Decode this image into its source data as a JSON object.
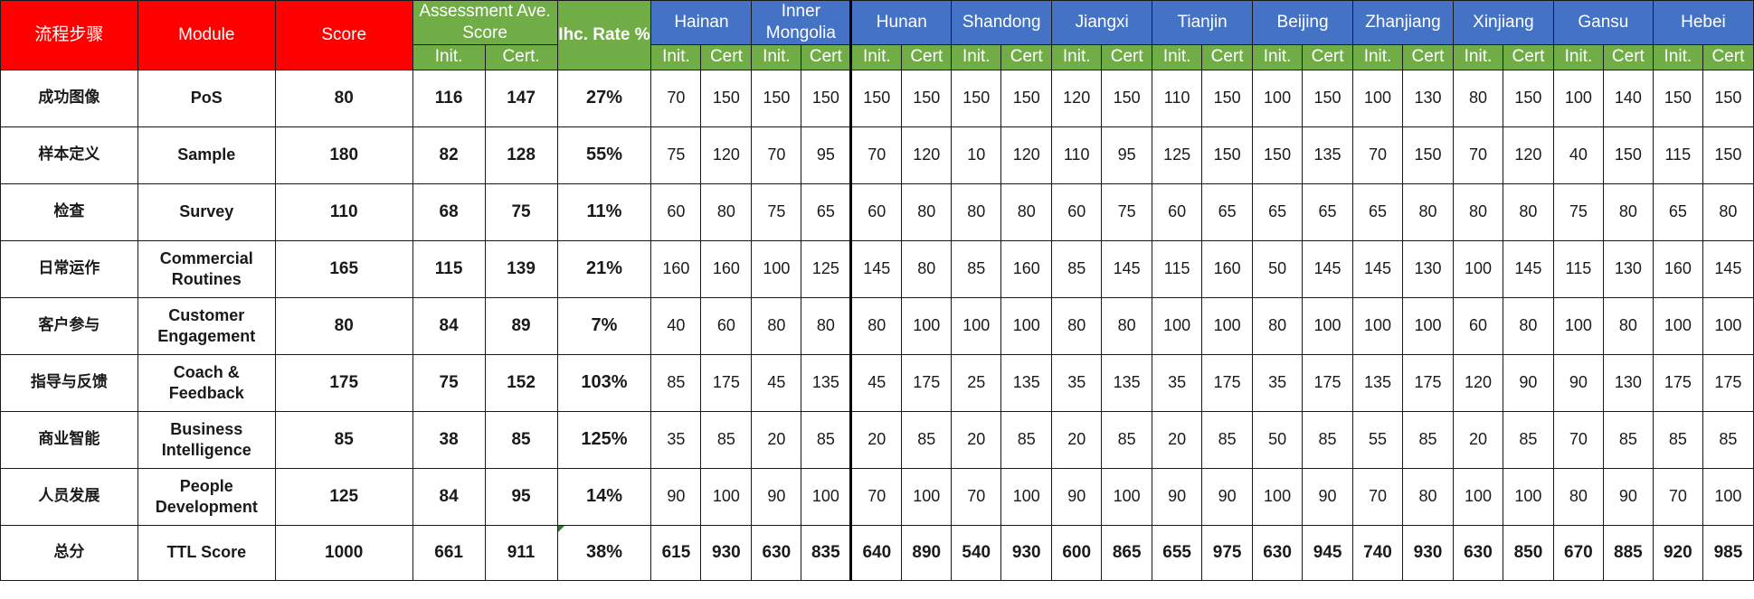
{
  "headers": {
    "step": "流程步骤",
    "module": "Module",
    "score": "Score",
    "assessment": "Assessment Ave. Score",
    "rate": "Ihc. Rate %",
    "init": "Init.",
    "cert": "Cert."
  },
  "provinces": [
    {
      "name": "Hainan",
      "init": "Init.",
      "cert": "Cert"
    },
    {
      "name": "Inner Mongolia",
      "init": "Init.",
      "cert": "Cert"
    },
    {
      "name": "Hunan",
      "init": "Init.",
      "cert": "Cert"
    },
    {
      "name": "Shandong",
      "init": "Init.",
      "cert": "Cert"
    },
    {
      "name": "Jiangxi",
      "init": "Init.",
      "cert": "Cert"
    },
    {
      "name": "Tianjin",
      "init": "Init.",
      "cert": "Cert"
    },
    {
      "name": "Beijing",
      "init": "Init.",
      "cert": "Cert"
    },
    {
      "name": "Zhanjiang",
      "init": "Init.",
      "cert": "Cert"
    },
    {
      "name": "Xinjiang",
      "init": "Init.",
      "cert": "Cert"
    },
    {
      "name": "Gansu",
      "init": "Init.",
      "cert": "Cert"
    },
    {
      "name": "Hebei",
      "init": "Init.",
      "cert": "Cert"
    }
  ],
  "rows": [
    {
      "step": "成功图像",
      "module": "PoS",
      "score": "80",
      "ave_init": "116",
      "ave_cert": "147",
      "rate": "27%",
      "values": [
        "70",
        "150",
        "150",
        "150",
        "150",
        "150",
        "150",
        "150",
        "120",
        "150",
        "110",
        "150",
        "100",
        "150",
        "100",
        "130",
        "80",
        "150",
        "100",
        "140",
        "150",
        "150"
      ]
    },
    {
      "step": "样本定义",
      "module": "Sample",
      "score": "180",
      "ave_init": "82",
      "ave_cert": "128",
      "rate": "55%",
      "values": [
        "75",
        "120",
        "70",
        "95",
        "70",
        "120",
        "10",
        "120",
        "110",
        "95",
        "125",
        "150",
        "150",
        "135",
        "70",
        "150",
        "70",
        "120",
        "40",
        "150",
        "115",
        "150"
      ]
    },
    {
      "step": "检查",
      "module": "Survey",
      "score": "110",
      "ave_init": "68",
      "ave_cert": "75",
      "rate": "11%",
      "values": [
        "60",
        "80",
        "75",
        "65",
        "60",
        "80",
        "80",
        "80",
        "60",
        "75",
        "60",
        "65",
        "65",
        "65",
        "65",
        "80",
        "80",
        "80",
        "75",
        "80",
        "65",
        "80"
      ]
    },
    {
      "step": "日常运作",
      "module": "Commercial Routines",
      "score": "165",
      "ave_init": "115",
      "ave_cert": "139",
      "rate": "21%",
      "values": [
        "160",
        "160",
        "100",
        "125",
        "145",
        "80",
        "85",
        "160",
        "85",
        "145",
        "115",
        "160",
        "50",
        "145",
        "145",
        "130",
        "100",
        "145",
        "115",
        "130",
        "160",
        "145"
      ]
    },
    {
      "step": "客户参与",
      "module": "Customer Engagement",
      "score": "80",
      "ave_init": "84",
      "ave_cert": "89",
      "rate": "7%",
      "values": [
        "40",
        "60",
        "80",
        "80",
        "80",
        "100",
        "100",
        "100",
        "80",
        "80",
        "100",
        "100",
        "80",
        "100",
        "100",
        "100",
        "60",
        "80",
        "100",
        "80",
        "100",
        "100"
      ]
    },
    {
      "step": "指导与反馈",
      "module": "Coach & Feedback",
      "score": "175",
      "ave_init": "75",
      "ave_cert": "152",
      "rate": "103%",
      "values": [
        "85",
        "175",
        "45",
        "135",
        "45",
        "175",
        "25",
        "135",
        "35",
        "135",
        "35",
        "175",
        "35",
        "175",
        "135",
        "175",
        "120",
        "90",
        "90",
        "130",
        "175",
        "175"
      ]
    },
    {
      "step": "商业智能",
      "module": "Business Intelligence",
      "score": "85",
      "ave_init": "38",
      "ave_cert": "85",
      "rate": "125%",
      "values": [
        "35",
        "85",
        "20",
        "85",
        "20",
        "85",
        "20",
        "85",
        "20",
        "85",
        "20",
        "85",
        "50",
        "85",
        "55",
        "85",
        "20",
        "85",
        "70",
        "85",
        "85",
        "85"
      ]
    },
    {
      "step": "人员发展",
      "module": "People Development",
      "score": "125",
      "ave_init": "84",
      "ave_cert": "95",
      "rate": "14%",
      "values": [
        "90",
        "100",
        "90",
        "100",
        "70",
        "100",
        "70",
        "100",
        "90",
        "100",
        "90",
        "90",
        "100",
        "90",
        "70",
        "80",
        "100",
        "100",
        "80",
        "90",
        "70",
        "100"
      ]
    }
  ],
  "total": {
    "step": "总分",
    "module": "TTL Score",
    "score": "1000",
    "ave_init": "661",
    "ave_cert": "911",
    "rate": "38%",
    "values": [
      "615",
      "930",
      "630",
      "835",
      "640",
      "890",
      "540",
      "930",
      "600",
      "865",
      "655",
      "975",
      "630",
      "945",
      "740",
      "930",
      "630",
      "850",
      "670",
      "885",
      "920",
      "985"
    ]
  },
  "colors": {
    "red_header": "#ff0000",
    "green_header": "#70ad47",
    "blue_header": "#4472c4"
  }
}
